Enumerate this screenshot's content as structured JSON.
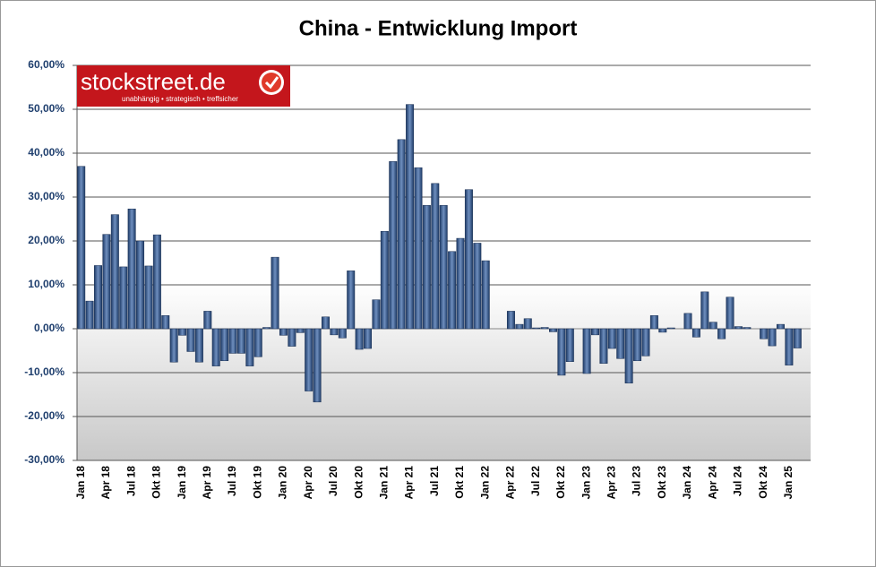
{
  "logo": {
    "name": "stockstreet.de",
    "tagline": "unabhängig • strategisch • treffsicher"
  },
  "chart_data": {
    "type": "bar",
    "title": "China - Entwicklung Import",
    "categories": [
      "Jan 18",
      null,
      null,
      "Apr 18",
      null,
      null,
      "Jul 18",
      null,
      null,
      "Okt 18",
      null,
      null,
      "Jan 19",
      null,
      null,
      "Apr 19",
      null,
      null,
      "Jul 19",
      null,
      null,
      "Okt 19",
      null,
      null,
      "Jan 20",
      null,
      null,
      "Apr 20",
      null,
      null,
      "Jul 20",
      null,
      null,
      "Okt 20",
      null,
      null,
      "Jan 21",
      null,
      null,
      "Apr 21",
      null,
      null,
      "Jul 21",
      null,
      null,
      "Okt 21",
      null,
      null,
      "Jan 22",
      null,
      null,
      "Apr 22",
      null,
      null,
      "Jul 22",
      null,
      null,
      "Okt 22",
      null,
      null,
      "Jan 23",
      null,
      null,
      "Apr 23",
      null,
      null,
      "Jul 23",
      null,
      null,
      "Okt 23",
      null,
      null,
      "Jan 24",
      null,
      null,
      "Apr 24",
      null,
      null,
      "Jul 24",
      null,
      null,
      "Okt 24",
      null,
      null,
      "Jan 25",
      null
    ],
    "values": [
      37,
      6.3,
      14.4,
      21.5,
      26,
      14.1,
      27.3,
      20,
      14.3,
      21.4,
      3,
      -7.6,
      -1.5,
      -5.2,
      -7.6,
      4,
      -8.5,
      -7.3,
      -5.6,
      -5.6,
      -8.5,
      -6.4,
      0.3,
      16.3,
      -1.5,
      -4,
      -0.9,
      -14.2,
      -16.7,
      2.7,
      -1.4,
      -2.1,
      13.2,
      -4.7,
      -4.5,
      6.6,
      22.2,
      38.1,
      43.1,
      51.1,
      36.7,
      28.1,
      33.1,
      28.1,
      17.6,
      20.6,
      31.7,
      19.5,
      15.5,
      0,
      0,
      4,
      1,
      2.3,
      0.2,
      0.3,
      -0.7,
      -10.6,
      -7.5,
      0,
      -10.2,
      -1.4,
      -7.9,
      -4.5,
      -6.8,
      -12.4,
      -7.3,
      -6.2,
      3,
      -0.8,
      0.2,
      0,
      3.5,
      -1.9,
      8.4,
      1.5,
      -2.3,
      7.2,
      0.5,
      0.3,
      0,
      -2.3,
      -3.9,
      1,
      -8.3,
      -4.4
    ],
    "color": "#2f5285",
    "ylim": [
      -30,
      60
    ],
    "yticks": [
      {
        "value": -30,
        "label": "-30,00%"
      },
      {
        "value": -20,
        "label": "-20,00%"
      },
      {
        "value": -10,
        "label": "-10,00%"
      },
      {
        "value": 0,
        "label": "0,00%"
      },
      {
        "value": 10,
        "label": "10,00%"
      },
      {
        "value": 20,
        "label": "20,00%"
      },
      {
        "value": 30,
        "label": "30,00%"
      },
      {
        "value": 40,
        "label": "40,00%"
      },
      {
        "value": 50,
        "label": "50,00%"
      },
      {
        "value": 60,
        "label": "60,00%"
      }
    ],
    "grid": true
  }
}
